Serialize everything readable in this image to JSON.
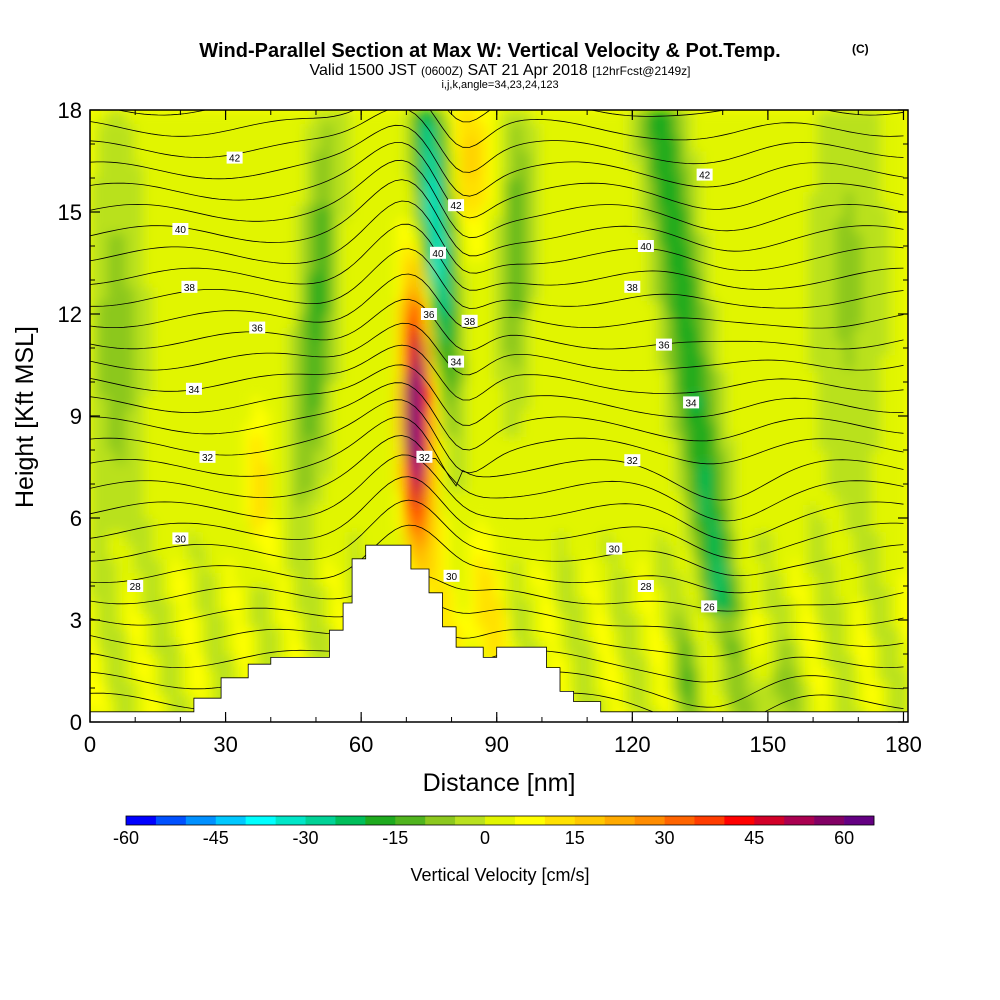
{
  "chart_data": {
    "type": "heatmap",
    "title": "Wind-Parallel Section at Max W: Vertical Velocity & Pot.Temp.",
    "title_mark": "(C)",
    "subtitle_main": "Valid 1500 JST",
    "subtitle_z": "(0600Z)",
    "subtitle_date": "SAT 21 Apr 2018",
    "subtitle_fcst": "[12hrFcst@2149z]",
    "subtitle2": "i,j,k,angle=34,23,24,123",
    "xlabel": "Distance [nm]",
    "ylabel": "Height [Kft MSL]",
    "xlim": [
      0,
      181
    ],
    "ylim": [
      0,
      18
    ],
    "x_ticks": [
      "0",
      "30",
      "60",
      "90",
      "120",
      "150",
      "180"
    ],
    "y_ticks": [
      "0",
      "3",
      "6",
      "9",
      "12",
      "15",
      "18"
    ],
    "colorbar": {
      "label": "Vertical Velocity [cm/s]",
      "min": -60,
      "max": 65,
      "step": 5,
      "ticks": [
        "-60",
        "-45",
        "-30",
        "-15",
        "0",
        "15",
        "30",
        "45",
        "60"
      ],
      "colors": [
        "#0000ff",
        "#0050ff",
        "#0090ff",
        "#00c8ff",
        "#00ffff",
        "#00e6c8",
        "#00d296",
        "#00be5a",
        "#1eaa1e",
        "#50b41e",
        "#8cc81e",
        "#b9e11e",
        "#e1f500",
        "#ffff00",
        "#ffe100",
        "#ffc800",
        "#ffaa00",
        "#ff8c00",
        "#ff6400",
        "#ff3c00",
        "#ff0000",
        "#d20028",
        "#aa0050",
        "#820064",
        "#640082"
      ]
    },
    "contour_labels": [
      {
        "x": 32,
        "y": 16.6,
        "text": "42"
      },
      {
        "x": 20,
        "y": 14.5,
        "text": "40"
      },
      {
        "x": 22,
        "y": 12.8,
        "text": "38"
      },
      {
        "x": 37,
        "y": 11.6,
        "text": "36"
      },
      {
        "x": 23,
        "y": 9.8,
        "text": "34"
      },
      {
        "x": 26,
        "y": 7.8,
        "text": "32"
      },
      {
        "x": 20,
        "y": 5.4,
        "text": "30"
      },
      {
        "x": 10,
        "y": 4.0,
        "text": "28"
      },
      {
        "x": 81,
        "y": 15.2,
        "text": "42"
      },
      {
        "x": 77,
        "y": 13.8,
        "text": "40"
      },
      {
        "x": 75,
        "y": 12.0,
        "text": "36"
      },
      {
        "x": 84,
        "y": 11.8,
        "text": "38"
      },
      {
        "x": 81,
        "y": 10.6,
        "text": "34"
      },
      {
        "x": 74,
        "y": 7.8,
        "text": "32"
      },
      {
        "x": 80,
        "y": 4.3,
        "text": "30"
      },
      {
        "x": 136,
        "y": 16.1,
        "text": "42"
      },
      {
        "x": 123,
        "y": 14.0,
        "text": "40"
      },
      {
        "x": 120,
        "y": 12.8,
        "text": "38"
      },
      {
        "x": 127,
        "y": 11.1,
        "text": "36"
      },
      {
        "x": 133,
        "y": 9.4,
        "text": "34"
      },
      {
        "x": 120,
        "y": 7.7,
        "text": "32"
      },
      {
        "x": 116,
        "y": 5.1,
        "text": "30"
      },
      {
        "x": 123,
        "y": 4.0,
        "text": "28"
      },
      {
        "x": 137,
        "y": 3.4,
        "text": "26"
      }
    ]
  }
}
